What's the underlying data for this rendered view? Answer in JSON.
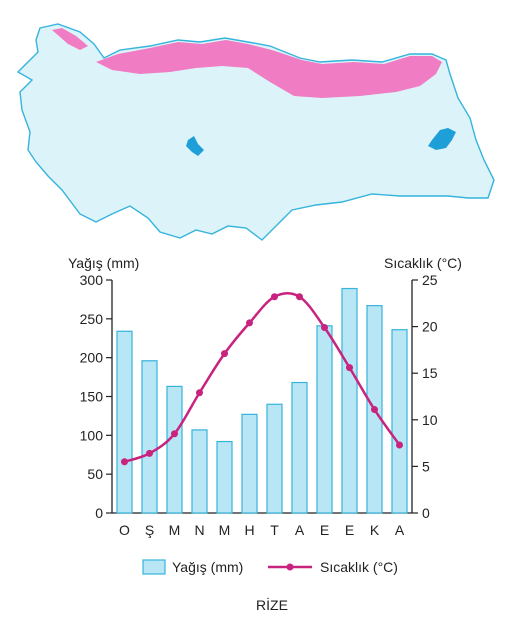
{
  "map": {
    "land_color": "#ddf3fa",
    "border_color": "#35b4dc",
    "highlight_color": "#f07cc4",
    "lake_color": "#1e9fd8"
  },
  "chart_data": {
    "type": "bar+line",
    "title": "RİZE",
    "categories": [
      "O",
      "Ş",
      "M",
      "N",
      "M",
      "H",
      "T",
      "A",
      "E",
      "E",
      "K",
      "A"
    ],
    "series": [
      {
        "name": "Yağış (mm)",
        "kind": "bar",
        "axis": "left",
        "color": "#b8e6f4",
        "stroke": "#35b4dc",
        "values": [
          234,
          196,
          163,
          107,
          92,
          127,
          140,
          168,
          241,
          289,
          267,
          236
        ]
      },
      {
        "name": "Sıcaklık (°C)",
        "kind": "line",
        "axis": "right",
        "color": "#c8237f",
        "values": [
          5.5,
          6.4,
          8.5,
          12.9,
          17.1,
          20.4,
          23.2,
          23.2,
          19.9,
          15.6,
          11.1,
          7.3
        ]
      }
    ],
    "ylabel_left": "Yağış (mm)",
    "ylabel_right": "Sıcaklık (°C)",
    "ylim_left": [
      0,
      300
    ],
    "ylim_right": [
      0,
      25
    ],
    "yticks_left": [
      0,
      50,
      100,
      150,
      200,
      250,
      300
    ],
    "yticks_right": [
      0,
      5,
      10,
      15,
      20,
      25
    ],
    "legend_position": "bottom",
    "grid": false
  }
}
